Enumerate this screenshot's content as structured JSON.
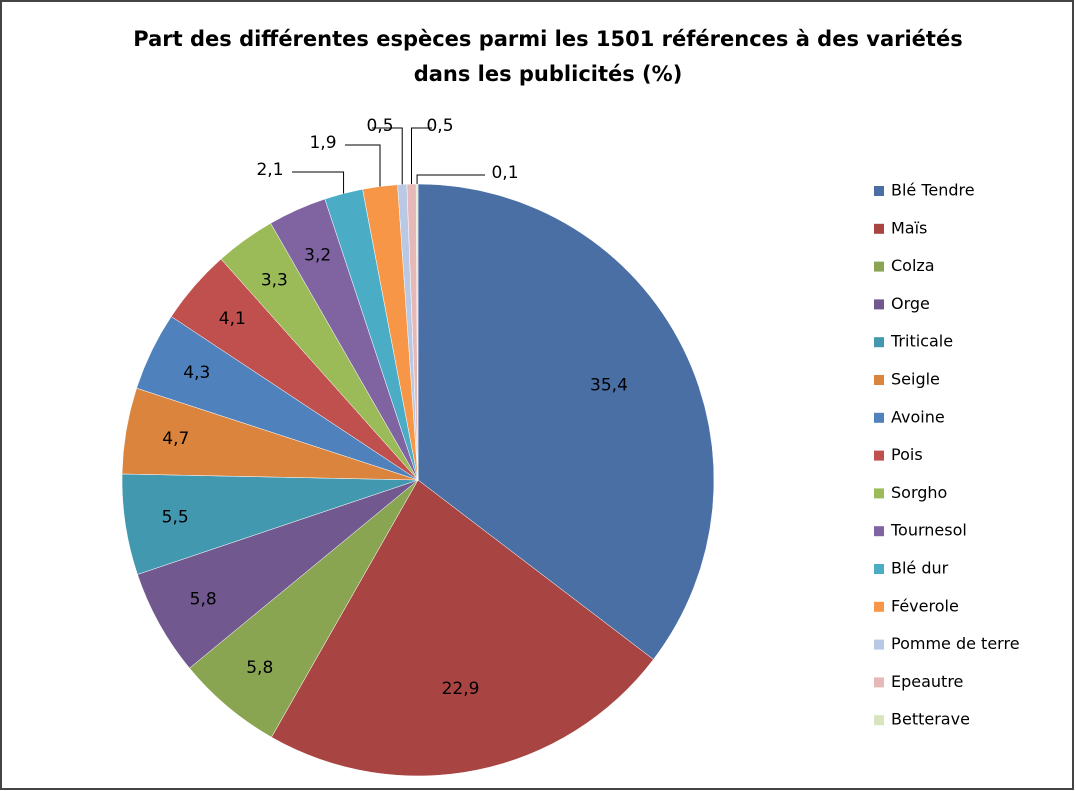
{
  "chart_data": {
    "type": "pie",
    "title": [
      "Part des différentes espèces parmi les 1501 références à des variétés",
      "dans les publicités  (%)"
    ],
    "categories": [
      "Blé Tendre",
      "Maïs",
      "Colza",
      "Orge",
      "Triticale",
      "Seigle",
      "Avoine",
      "Pois",
      "Sorgho",
      "Tournesol",
      "Blé dur",
      "Féverole",
      "Pomme de terre",
      "Epeautre",
      "Betterave"
    ],
    "values": [
      35.4,
      22.9,
      5.8,
      5.8,
      5.5,
      4.7,
      4.3,
      4.1,
      3.3,
      3.2,
      2.1,
      1.9,
      0.5,
      0.5,
      0.1
    ],
    "value_labels": [
      "35,4",
      "22,9",
      "5,8",
      "5,8",
      "5,5",
      "4,7",
      "4,3",
      "4,1",
      "3,3",
      "3,2",
      "2,1",
      "1,9",
      "0,5",
      "0,5",
      "0,1"
    ],
    "colors": [
      "#4a6fa5",
      "#a84442",
      "#8aa552",
      "#71588f",
      "#4198af",
      "#db843d",
      "#4f81bd",
      "#c0504d",
      "#9bbb59",
      "#8064a2",
      "#4bacc6",
      "#f79646",
      "#b9c9e5",
      "#e6b9b8",
      "#d7e4bd"
    ],
    "legend": "right"
  }
}
